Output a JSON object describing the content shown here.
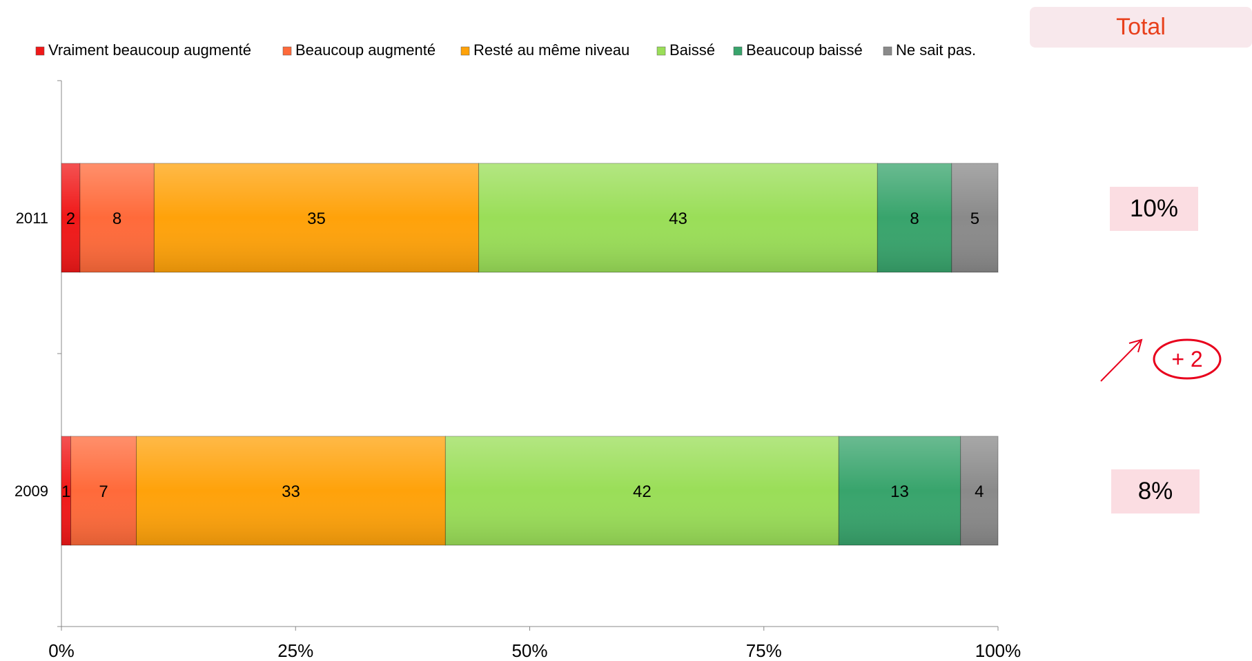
{
  "chart_data": {
    "type": "bar",
    "orientation": "horizontal",
    "stacked": true,
    "categories": [
      "2011",
      "2009"
    ],
    "series": [
      {
        "name": "Vraiment beaucoup augmenté",
        "values": [
          2,
          1
        ],
        "color": "#f01818"
      },
      {
        "name": "Beaucoup augmenté",
        "values": [
          8,
          7
        ],
        "color": "#ff6a3a"
      },
      {
        "name": "Resté au même niveau",
        "values": [
          35,
          33
        ],
        "color": "#ffa20a"
      },
      {
        "name": "Baissé",
        "values": [
          43,
          42
        ],
        "color": "#9ade58"
      },
      {
        "name": "Beaucoup baissé",
        "values": [
          8,
          13
        ],
        "color": "#38a46c"
      },
      {
        "name": "Ne sait pas.",
        "values": [
          5,
          4
        ],
        "color": "#8a8a8a"
      }
    ],
    "x_ticks": [
      "0%",
      "25%",
      "50%",
      "75%",
      "100%"
    ],
    "xlim": [
      0,
      100
    ],
    "legend_position": "top",
    "grid": false
  },
  "side_panel": {
    "header": "Total",
    "totals": [
      {
        "year": "2011",
        "value": "10%"
      },
      {
        "year": "2009",
        "value": "8%"
      }
    ],
    "change": "+ 2",
    "change_color": "#e8001c",
    "trend_icon": "arrow-up-right-icon"
  }
}
